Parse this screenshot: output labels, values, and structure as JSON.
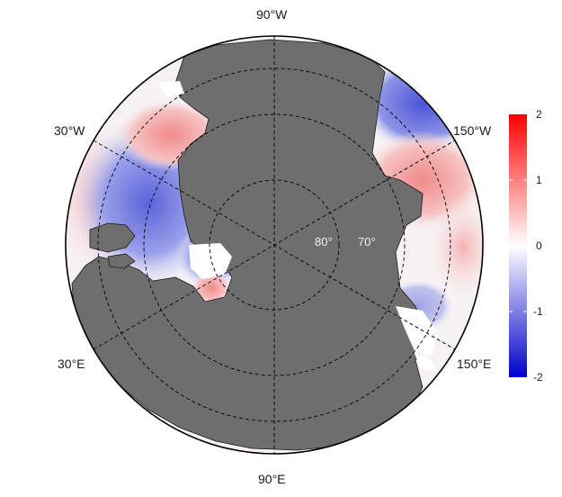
{
  "map": {
    "projection": "north-polar-stereographic",
    "land_color": "#6e6e6e",
    "grid_line_color": "#000000",
    "lon_labels": [
      {
        "lon": "90°W",
        "text": "90°W"
      },
      {
        "lon": "30°W",
        "text": "30°W"
      },
      {
        "lon": "150°W",
        "text": "150°W"
      },
      {
        "lon": "30°E",
        "text": "30°E"
      },
      {
        "lon": "150°E",
        "text": "150°E"
      },
      {
        "lon": "90°E",
        "text": "90°E"
      }
    ],
    "lat_labels": [
      {
        "lat": 80,
        "text": "80°"
      },
      {
        "lat": 70,
        "text": "70°"
      }
    ]
  },
  "colorbar": {
    "min": -2,
    "max": 2,
    "colors": {
      "low": "#0000cc",
      "mid": "#ffffff",
      "high": "#ff0000"
    },
    "ticks": [
      "2",
      "1",
      "0",
      "-1",
      "-2"
    ]
  }
}
